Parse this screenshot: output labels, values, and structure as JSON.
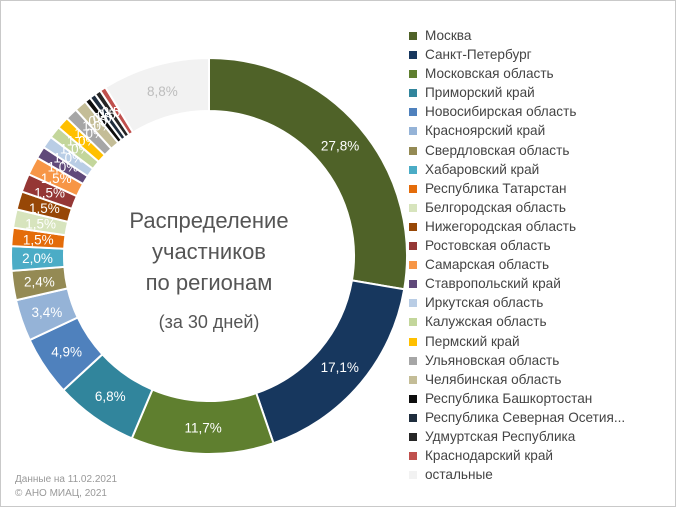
{
  "chart_data": {
    "type": "pie",
    "title": "Распределение\nучастников\nпо регионам",
    "subtitle": "(за 30 дней)",
    "legend_position": "right",
    "slices": [
      {
        "label": "Москва",
        "value": 27.8,
        "value_label": "27,8%",
        "color": "#4f6228"
      },
      {
        "label": "Санкт-Петербург",
        "value": 17.1,
        "value_label": "17,1%",
        "color": "#17375e"
      },
      {
        "label": "Московская область",
        "value": 11.7,
        "value_label": "11,7%",
        "color": "#5f7f2f"
      },
      {
        "label": "Приморский край",
        "value": 6.8,
        "value_label": "6,8%",
        "color": "#31859c"
      },
      {
        "label": "Новосибирская область",
        "value": 4.9,
        "value_label": "4,9%",
        "color": "#4f81bd"
      },
      {
        "label": "Красноярский край",
        "value": 3.4,
        "value_label": "3,4%",
        "color": "#95b3d7"
      },
      {
        "label": "Свердловская область",
        "value": 2.4,
        "value_label": "2,4%",
        "color": "#948a54"
      },
      {
        "label": "Хабаровский край",
        "value": 2.0,
        "value_label": "2,0%",
        "color": "#4bacc6"
      },
      {
        "label": "Республика Татарстан",
        "value": 1.5,
        "value_label": "1,5%",
        "color": "#e46c0a"
      },
      {
        "label": "Белгородская область",
        "value": 1.5,
        "value_label": "1,5%",
        "color": "#d7e4bd"
      },
      {
        "label": "Нижегородская область",
        "value": 1.5,
        "value_label": "1,5%",
        "color": "#974706"
      },
      {
        "label": "Ростовская область",
        "value": 1.5,
        "value_label": "1,5%",
        "color": "#953735"
      },
      {
        "label": "Самарская область",
        "value": 1.5,
        "value_label": "1,5%",
        "color": "#f79646"
      },
      {
        "label": "Ставропольский край",
        "value": 1.0,
        "value_label": "1,0%",
        "color": "#60497a"
      },
      {
        "label": "Иркутская область",
        "value": 1.0,
        "value_label": "1,0%",
        "color": "#b9cde5"
      },
      {
        "label": "Калужская область",
        "value": 1.0,
        "value_label": "1,0%",
        "color": "#c3d69b"
      },
      {
        "label": "Пермский край",
        "value": 1.0,
        "value_label": "1,0%",
        "color": "#ffc000"
      },
      {
        "label": "Ульяновская область",
        "value": 1.0,
        "value_label": "1,0%",
        "color": "#a6a6a6"
      },
      {
        "label": "Челябинская область",
        "value": 1.0,
        "value_label": "1,0%",
        "color": "#c4bd97"
      },
      {
        "label": "Республика Башкортостан",
        "value": 0.5,
        "value_label": "0,5%",
        "color": "#0d0d0d"
      },
      {
        "label": "Республика Северная Осетия...",
        "value": 0.5,
        "value_label": "0,5%",
        "color": "#1f2d3d"
      },
      {
        "label": "Удмуртская Республика",
        "value": 0.5,
        "value_label": "0,5%",
        "color": "#262626"
      },
      {
        "label": "Краснодарский край",
        "value": 0.5,
        "value_label": "0,5%",
        "color": "#c0504d"
      },
      {
        "label": "остальные",
        "value": 8.8,
        "value_label": "8,8%",
        "color": "#f2f2f2"
      }
    ]
  },
  "footer": {
    "line1": "Данные на 11.02.2021",
    "line2": "© АНО МИАЦ, 2021"
  }
}
